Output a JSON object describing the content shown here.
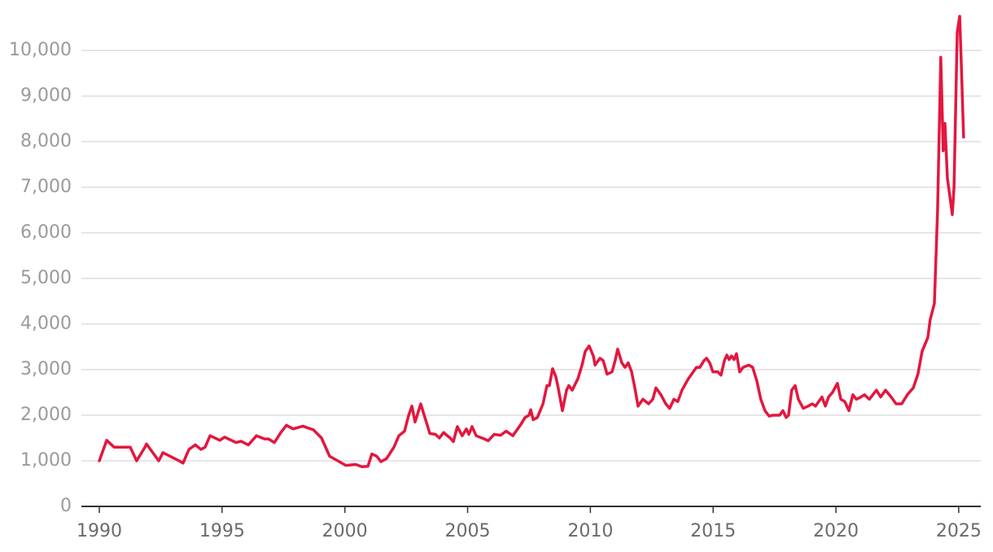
{
  "chart_data": {
    "type": "line",
    "color": "#e3173e",
    "grid": true,
    "x": [
      1990.0,
      1990.3,
      1990.6,
      1991.26,
      1991.52,
      1991.86,
      1991.92,
      1992.42,
      1992.59,
      1993.25,
      1993.41,
      1993.65,
      1993.91,
      1994.14,
      1994.31,
      1994.51,
      1994.91,
      1995.1,
      1995.57,
      1995.77,
      1996.07,
      1996.4,
      1996.73,
      1996.89,
      1997.13,
      1997.39,
      1997.62,
      1997.89,
      1998.29,
      1998.72,
      1999.05,
      1999.38,
      1999.71,
      2000.04,
      2000.44,
      2000.7,
      2000.94,
      2001.1,
      2001.3,
      2001.47,
      2001.7,
      2002.0,
      2002.2,
      2002.43,
      2002.6,
      2002.73,
      2002.86,
      2003.09,
      2003.26,
      2003.46,
      2003.69,
      2003.85,
      2004.02,
      2004.29,
      2004.42,
      2004.58,
      2004.78,
      2004.95,
      2005.05,
      2005.18,
      2005.35,
      2005.68,
      2005.84,
      2006.08,
      2006.34,
      2006.57,
      2006.84,
      2007.17,
      2007.34,
      2007.5,
      2007.57,
      2007.67,
      2007.84,
      2008.07,
      2008.23,
      2008.33,
      2008.46,
      2008.59,
      2008.69,
      2008.86,
      2009.03,
      2009.12,
      2009.26,
      2009.49,
      2009.66,
      2009.79,
      2009.95,
      2010.12,
      2010.19,
      2010.39,
      2010.52,
      2010.68,
      2010.88,
      2011.01,
      2011.11,
      2011.28,
      2011.41,
      2011.54,
      2011.68,
      2011.81,
      2011.94,
      2012.14,
      2012.37,
      2012.54,
      2012.67,
      2012.87,
      2013.07,
      2013.23,
      2013.4,
      2013.56,
      2013.73,
      2013.99,
      2014.12,
      2014.32,
      2014.46,
      2014.63,
      2014.73,
      2014.86,
      2014.99,
      2015.19,
      2015.32,
      2015.46,
      2015.56,
      2015.65,
      2015.75,
      2015.85,
      2015.95,
      2016.08,
      2016.22,
      2016.45,
      2016.61,
      2016.78,
      2016.94,
      2017.11,
      2017.28,
      2017.44,
      2017.71,
      2017.84,
      2017.97,
      2018.07,
      2018.2,
      2018.34,
      2018.47,
      2018.67,
      2018.87,
      2019.04,
      2019.17,
      2019.43,
      2019.57,
      2019.7,
      2019.86,
      2020.06,
      2020.2,
      2020.36,
      2020.53,
      2020.69,
      2020.83,
      2021.02,
      2021.16,
      2021.36,
      2021.65,
      2021.82,
      2022.02,
      2022.25,
      2022.45,
      2022.68,
      2022.91,
      2023.15,
      2023.34,
      2023.51,
      2023.74,
      2023.84,
      2024.01,
      2024.14,
      2024.27,
      2024.37,
      2024.44,
      2024.54,
      2024.64,
      2024.74,
      2024.81,
      2024.94,
      2025.04,
      2025.1,
      2025.2
    ],
    "values": [
      1000,
      1450,
      1300,
      1300,
      1000,
      1300,
      1370,
      1000,
      1180,
      1000,
      950,
      1250,
      1350,
      1250,
      1300,
      1550,
      1450,
      1520,
      1400,
      1430,
      1350,
      1550,
      1480,
      1480,
      1400,
      1620,
      1780,
      1700,
      1760,
      1680,
      1500,
      1100,
      1000,
      900,
      920,
      870,
      880,
      1150,
      1100,
      980,
      1050,
      1300,
      1550,
      1650,
      2000,
      2200,
      1850,
      2250,
      1950,
      1600,
      1580,
      1500,
      1620,
      1500,
      1420,
      1750,
      1550,
      1700,
      1580,
      1750,
      1550,
      1480,
      1440,
      1580,
      1560,
      1650,
      1550,
      1800,
      1950,
      2000,
      2120,
      1900,
      1950,
      2250,
      2650,
      2650,
      3020,
      2850,
      2600,
      2100,
      2550,
      2650,
      2550,
      2800,
      3100,
      3400,
      3520,
      3300,
      3100,
      3250,
      3200,
      2900,
      2950,
      3200,
      3450,
      3150,
      3050,
      3150,
      2950,
      2600,
      2200,
      2350,
      2250,
      2350,
      2600,
      2450,
      2250,
      2150,
      2350,
      2300,
      2550,
      2800,
      2900,
      3050,
      3050,
      3200,
      3250,
      3150,
      2950,
      2950,
      2880,
      3200,
      3320,
      3220,
      3300,
      3220,
      3350,
      2950,
      3050,
      3100,
      3050,
      2750,
      2350,
      2100,
      1980,
      2000,
      2000,
      2100,
      1950,
      2000,
      2550,
      2650,
      2350,
      2150,
      2200,
      2250,
      2200,
      2400,
      2200,
      2400,
      2500,
      2700,
      2350,
      2300,
      2100,
      2450,
      2350,
      2400,
      2450,
      2350,
      2550,
      2400,
      2550,
      2400,
      2250,
      2250,
      2450,
      2600,
      2900,
      3400,
      3700,
      4100,
      4450,
      6500,
      9850,
      7800,
      8400,
      7200,
      6800,
      6400,
      7000,
      10400,
      10750,
      9800,
      8100
    ],
    "xlim": [
      1989.27,
      2025.9
    ],
    "xticks": [
      1990,
      1995,
      2000,
      2005,
      2010,
      2015,
      2020,
      2025
    ],
    "ylim": [
      0,
      10800
    ],
    "yticks": [
      0,
      {
        "value": 1000,
        "label": "1,000"
      },
      {
        "value": 2000,
        "label": "2,000"
      },
      {
        "value": 3000,
        "label": "3,000"
      },
      {
        "value": 4000,
        "label": "4,000"
      },
      {
        "value": 5000,
        "label": "5,000"
      },
      {
        "value": 6000,
        "label": "6,000"
      },
      {
        "value": 7000,
        "label": "7,000"
      },
      {
        "value": 8000,
        "label": "8,000"
      },
      {
        "value": 9000,
        "label": "9,000"
      },
      {
        "value": 10000,
        "label": "10,000"
      }
    ]
  }
}
